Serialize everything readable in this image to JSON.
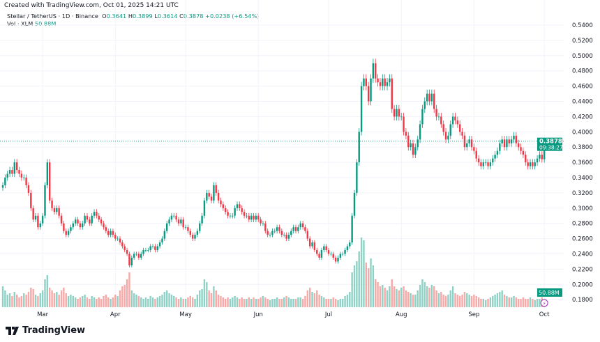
{
  "header": {
    "created": "Created with TradingView.com, Oct 01, 2025 14:21 UTC",
    "symbol": "Stellar / TetherUS · 1D · Binance",
    "o_label": "O",
    "o": "0.3641",
    "h_label": "H",
    "h": "0.3899",
    "l_label": "L",
    "l": "0.3614",
    "c_label": "C",
    "c": "0.3878",
    "change": "+0.0238 (+6.54%)",
    "vol_label": "Vol · XLM",
    "vol": "50.88M"
  },
  "footer": {
    "brand": "TradingView"
  },
  "colors": {
    "up": "#089981",
    "down": "#f23645",
    "vol_up": "#8fd2c5",
    "vol_down": "#f7a9a7"
  },
  "chart_data": {
    "type": "candlestick",
    "start_date": "2025-02-12",
    "interval": "1D",
    "ylim": [
      0.18,
      0.54
    ],
    "yticks": [
      "0.5400",
      "0.5200",
      "0.5000",
      "0.4800",
      "0.4600",
      "0.4400",
      "0.4200",
      "0.4000",
      "0.3800",
      "0.3600",
      "0.3400",
      "0.3200",
      "0.3000",
      "0.2800",
      "0.2600",
      "0.2400",
      "0.2200",
      "0.2000",
      "0.1800"
    ],
    "xticks": [
      {
        "label": "Mar",
        "date": "2025-03-01"
      },
      {
        "label": "Apr",
        "date": "2025-04-01"
      },
      {
        "label": "May",
        "date": "2025-05-01"
      },
      {
        "label": "Jun",
        "date": "2025-06-01"
      },
      {
        "label": "Jul",
        "date": "2025-07-01"
      },
      {
        "label": "Aug",
        "date": "2025-08-01"
      },
      {
        "label": "Sep",
        "date": "2025-09-01"
      },
      {
        "label": "Oct",
        "date": "2025-10-01"
      }
    ],
    "last_price": "0.3878",
    "countdown": "09:38:27",
    "last_volume": "50.88M",
    "close": [
      0.33,
      0.34,
      0.345,
      0.35,
      0.345,
      0.36,
      0.35,
      0.345,
      0.34,
      0.34,
      0.33,
      0.32,
      0.3,
      0.285,
      0.29,
      0.275,
      0.28,
      0.29,
      0.33,
      0.36,
      0.31,
      0.3,
      0.295,
      0.3,
      0.29,
      0.28,
      0.27,
      0.265,
      0.27,
      0.275,
      0.28,
      0.285,
      0.28,
      0.275,
      0.28,
      0.29,
      0.285,
      0.28,
      0.29,
      0.295,
      0.29,
      0.285,
      0.28,
      0.275,
      0.27,
      0.265,
      0.27,
      0.265,
      0.26,
      0.26,
      0.255,
      0.25,
      0.245,
      0.24,
      0.225,
      0.235,
      0.24,
      0.24,
      0.235,
      0.24,
      0.245,
      0.245,
      0.245,
      0.25,
      0.25,
      0.245,
      0.25,
      0.255,
      0.26,
      0.27,
      0.28,
      0.285,
      0.29,
      0.29,
      0.285,
      0.28,
      0.285,
      0.275,
      0.275,
      0.27,
      0.265,
      0.26,
      0.265,
      0.27,
      0.28,
      0.29,
      0.31,
      0.32,
      0.315,
      0.31,
      0.33,
      0.32,
      0.31,
      0.305,
      0.3,
      0.295,
      0.29,
      0.29,
      0.29,
      0.3,
      0.305,
      0.3,
      0.295,
      0.29,
      0.29,
      0.285,
      0.29,
      0.285,
      0.29,
      0.285,
      0.28,
      0.28,
      0.27,
      0.265,
      0.265,
      0.27,
      0.27,
      0.275,
      0.27,
      0.265,
      0.265,
      0.26,
      0.265,
      0.27,
      0.275,
      0.27,
      0.275,
      0.28,
      0.275,
      0.27,
      0.26,
      0.25,
      0.255,
      0.245,
      0.24,
      0.235,
      0.245,
      0.25,
      0.245,
      0.24,
      0.24,
      0.235,
      0.23,
      0.235,
      0.24,
      0.24,
      0.245,
      0.25,
      0.255,
      0.29,
      0.32,
      0.36,
      0.4,
      0.46,
      0.47,
      0.46,
      0.44,
      0.47,
      0.49,
      0.47,
      0.465,
      0.46,
      0.47,
      0.46,
      0.465,
      0.47,
      0.43,
      0.42,
      0.43,
      0.42,
      0.42,
      0.4,
      0.395,
      0.38,
      0.385,
      0.37,
      0.38,
      0.39,
      0.41,
      0.43,
      0.44,
      0.45,
      0.44,
      0.45,
      0.43,
      0.42,
      0.42,
      0.41,
      0.4,
      0.39,
      0.395,
      0.41,
      0.42,
      0.415,
      0.41,
      0.4,
      0.395,
      0.38,
      0.385,
      0.39,
      0.38,
      0.375,
      0.365,
      0.36,
      0.355,
      0.36,
      0.36,
      0.355,
      0.36,
      0.365,
      0.37,
      0.375,
      0.385,
      0.39,
      0.38,
      0.39,
      0.385,
      0.39,
      0.395,
      0.385,
      0.38,
      0.375,
      0.37,
      0.36,
      0.355,
      0.36,
      0.355,
      0.36,
      0.365,
      0.37,
      0.3641,
      0.3878
    ],
    "volume_m": [
      150,
      120,
      90,
      100,
      80,
      110,
      90,
      70,
      80,
      100,
      90,
      110,
      140,
      130,
      90,
      80,
      100,
      120,
      200,
      230,
      140,
      120,
      100,
      110,
      90,
      120,
      140,
      100,
      80,
      90,
      80,
      70,
      60,
      70,
      80,
      90,
      70,
      60,
      80,
      70,
      60,
      70,
      60,
      80,
      90,
      70,
      60,
      70,
      90,
      80,
      120,
      150,
      160,
      200,
      250,
      120,
      100,
      90,
      80,
      70,
      60,
      70,
      60,
      80,
      70,
      60,
      70,
      80,
      90,
      110,
      120,
      100,
      90,
      80,
      70,
      60,
      70,
      60,
      60,
      70,
      80,
      70,
      60,
      90,
      120,
      130,
      200,
      180,
      120,
      100,
      150,
      120,
      90,
      80,
      70,
      60,
      70,
      60,
      70,
      80,
      70,
      60,
      70,
      60,
      60,
      70,
      60,
      70,
      60,
      60,
      70,
      80,
      70,
      60,
      50,
      60,
      60,
      70,
      60,
      60,
      70,
      80,
      70,
      60,
      60,
      60,
      70,
      70,
      60,
      80,
      120,
      140,
      110,
      100,
      120,
      90,
      80,
      70,
      60,
      60,
      60,
      70,
      60,
      50,
      60,
      60,
      80,
      90,
      110,
      250,
      300,
      330,
      400,
      500,
      480,
      320,
      280,
      350,
      300,
      200,
      180,
      150,
      160,
      140,
      120,
      150,
      200,
      150,
      130,
      120,
      140,
      150,
      120,
      110,
      100,
      90,
      90,
      120,
      160,
      200,
      180,
      150,
      140,
      160,
      150,
      120,
      100,
      110,
      90,
      80,
      90,
      120,
      150,
      100,
      90,
      80,
      90,
      110,
      100,
      90,
      80,
      90,
      80,
      70,
      60,
      60,
      50,
      60,
      70,
      80,
      90,
      100,
      110,
      120,
      90,
      80,
      70,
      70,
      80,
      70,
      60,
      60,
      70,
      60,
      60,
      70,
      60,
      50,
      60,
      60,
      70,
      50.88
    ]
  }
}
